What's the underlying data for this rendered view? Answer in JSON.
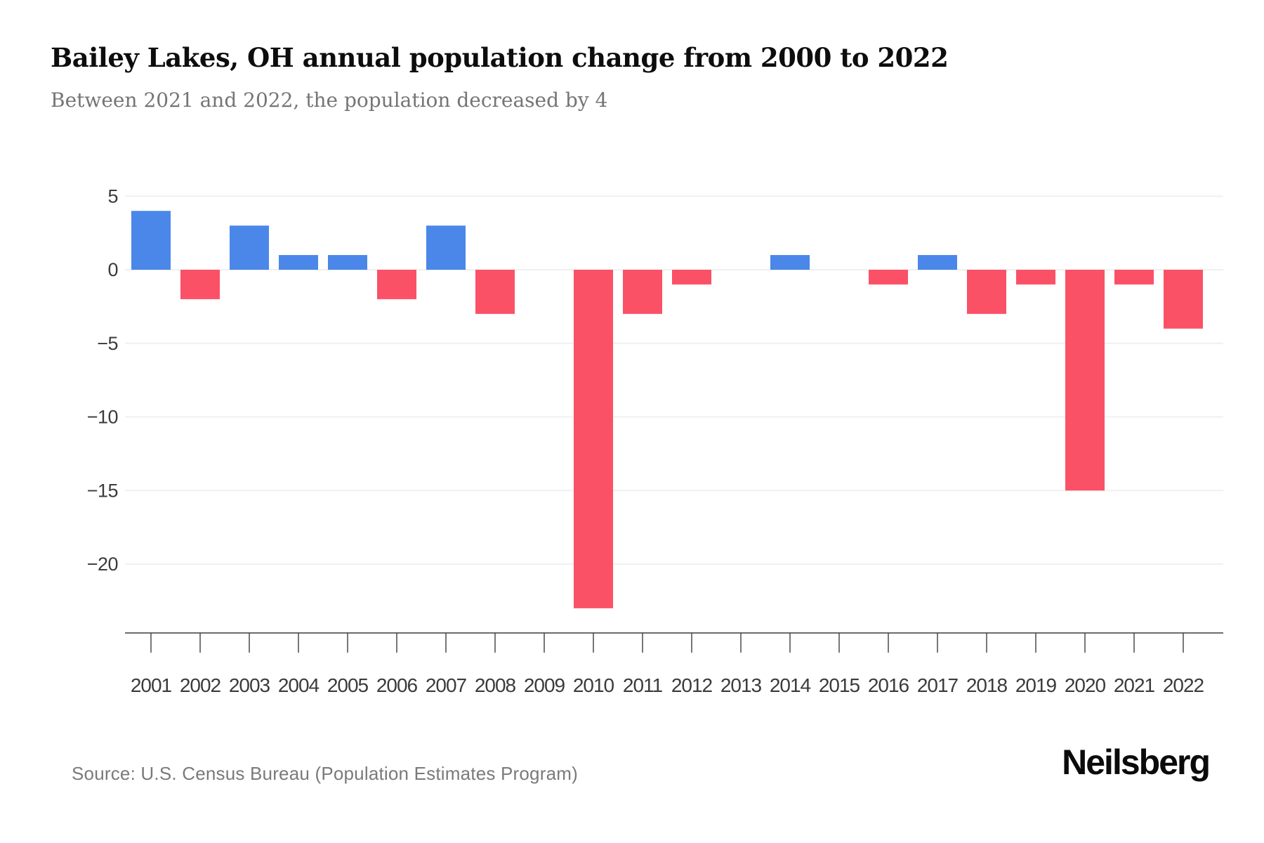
{
  "header": {
    "title": "Bailey Lakes, OH annual population change from 2000 to 2022",
    "subtitle": "Between 2021 and 2022, the population decreased by 4"
  },
  "footer": {
    "source": "Source: U.S. Census Bureau (Population Estimates Program)",
    "brand": "Neilsberg"
  },
  "chart_data": {
    "type": "bar",
    "title": "Bailey Lakes, OH annual population change from 2000 to 2022",
    "categories": [
      "2001",
      "2002",
      "2003",
      "2004",
      "2005",
      "2006",
      "2007",
      "2008",
      "2009",
      "2010",
      "2011",
      "2012",
      "2013",
      "2014",
      "2015",
      "2016",
      "2017",
      "2018",
      "2019",
      "2020",
      "2021",
      "2022"
    ],
    "values": [
      4,
      -2,
      3,
      1,
      1,
      -2,
      3,
      -3,
      0,
      -23,
      -3,
      -1,
      0,
      1,
      0,
      -1,
      1,
      -3,
      -1,
      -15,
      -1,
      -4
    ],
    "yticks": [
      5,
      0,
      -5,
      -10,
      -15,
      -20
    ],
    "ylim": [
      -25,
      5
    ],
    "xlabel": "",
    "ylabel": "",
    "grid": true,
    "legend_position": "none",
    "colors": {
      "positive": "#4b87e9",
      "negative": "#fb5167",
      "gridline": "#f0f0f0",
      "axis": "#3d3d3d",
      "tick_label": "#3b3b3b"
    }
  }
}
